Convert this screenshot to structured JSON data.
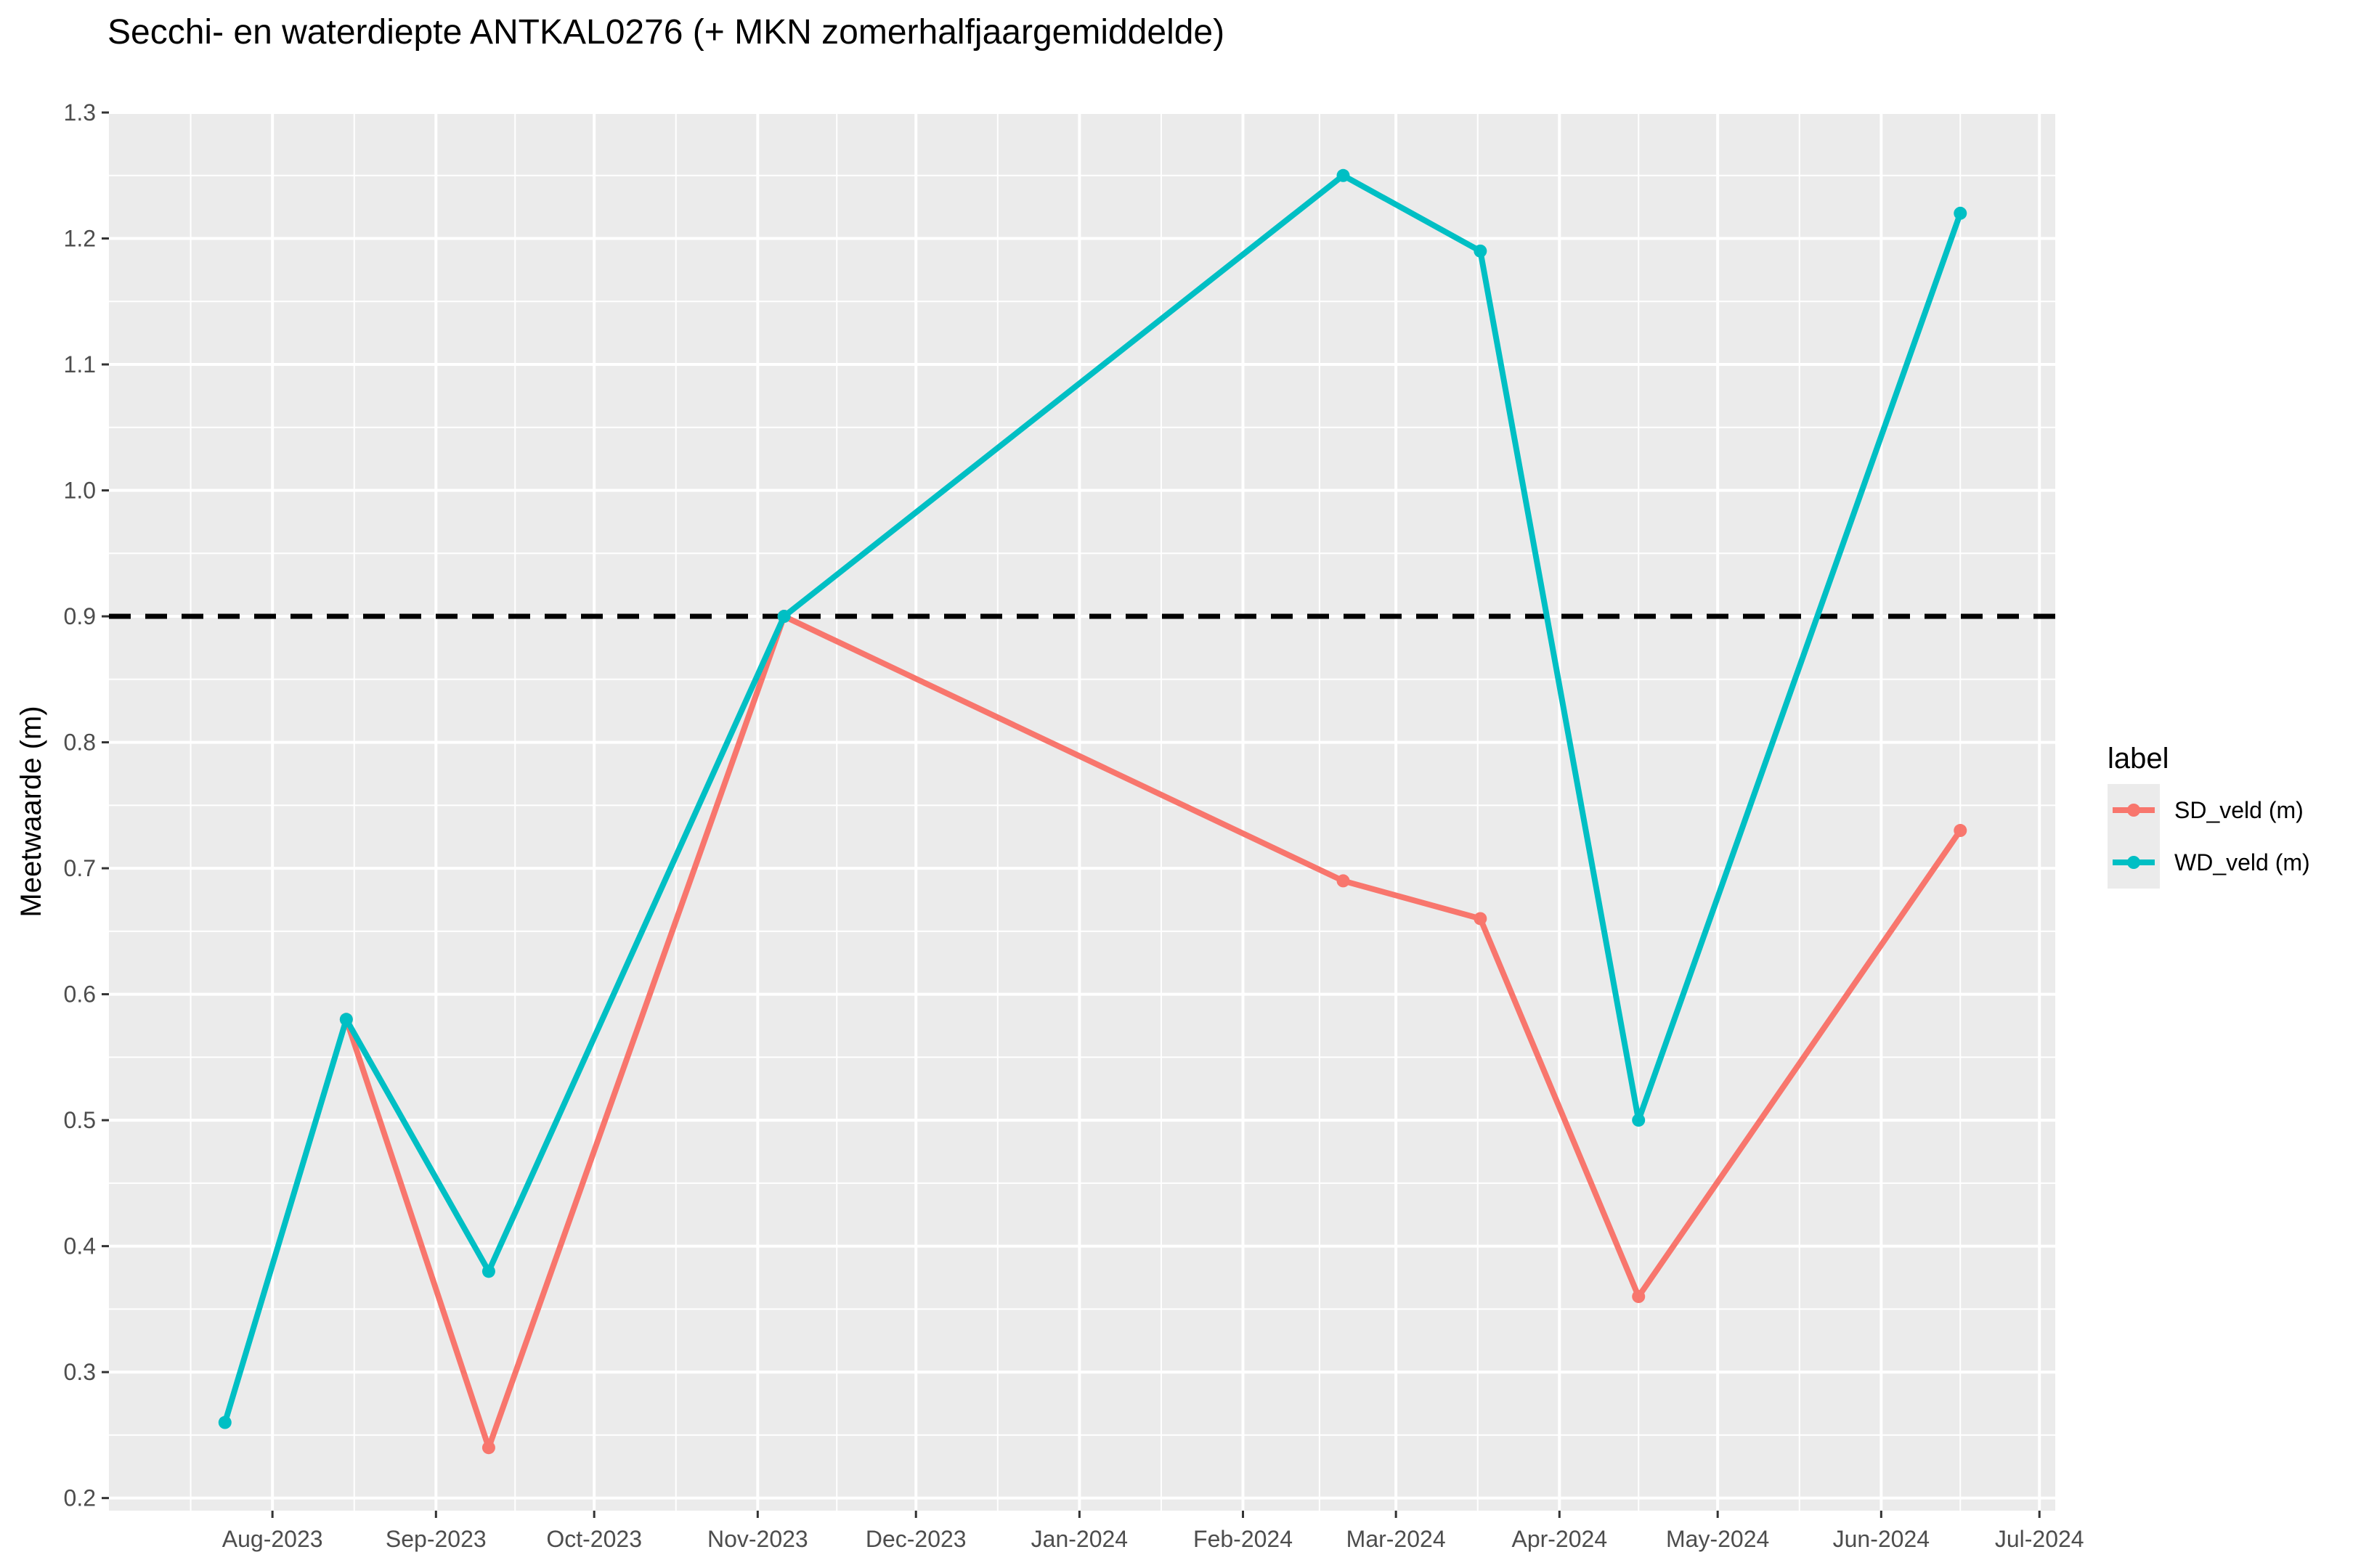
{
  "chart_data": {
    "type": "line",
    "title": "Secchi- en waterdiepte ANTKAL0276 (+ MKN  zomerhalfjaargemiddelde)",
    "xlabel": "",
    "ylabel": "Meetwaarde (m)",
    "x_axis": {
      "type": "date",
      "xlim": [
        "2023-07-01",
        "2024-07-04"
      ],
      "ticks": [
        {
          "date": "2023-08-01",
          "label": "Aug-2023"
        },
        {
          "date": "2023-09-01",
          "label": "Sep-2023"
        },
        {
          "date": "2023-10-01",
          "label": "Oct-2023"
        },
        {
          "date": "2023-11-01",
          "label": "Nov-2023"
        },
        {
          "date": "2023-12-01",
          "label": "Dec-2023"
        },
        {
          "date": "2024-01-01",
          "label": "Jan-2024"
        },
        {
          "date": "2024-02-01",
          "label": "Feb-2024"
        },
        {
          "date": "2024-03-01",
          "label": "Mar-2024"
        },
        {
          "date": "2024-04-01",
          "label": "Apr-2024"
        },
        {
          "date": "2024-05-01",
          "label": "May-2024"
        },
        {
          "date": "2024-06-01",
          "label": "Jun-2024"
        },
        {
          "date": "2024-07-01",
          "label": "Jul-2024"
        }
      ]
    },
    "y_axis": {
      "ylim": [
        0.19,
        1.3
      ],
      "ticks": [
        {
          "value": 0.2,
          "label": "0.2"
        },
        {
          "value": 0.3,
          "label": "0.3"
        },
        {
          "value": 0.4,
          "label": "0.4"
        },
        {
          "value": 0.5,
          "label": "0.5"
        },
        {
          "value": 0.6,
          "label": "0.6"
        },
        {
          "value": 0.7,
          "label": "0.7"
        },
        {
          "value": 0.8,
          "label": "0.8"
        },
        {
          "value": 0.9,
          "label": "0.9"
        },
        {
          "value": 1.0,
          "label": "1.0"
        },
        {
          "value": 1.1,
          "label": "1.1"
        },
        {
          "value": 1.2,
          "label": "1.2"
        },
        {
          "value": 1.3,
          "label": "1.3"
        }
      ]
    },
    "reference_line": {
      "y": 0.9,
      "style": "dashed",
      "color": "#000000"
    },
    "series": [
      {
        "name": "SD_veld (m)",
        "color": "#F8766D",
        "points": [
          {
            "x": "2023-08-15",
            "y": 0.58
          },
          {
            "x": "2023-09-11",
            "y": 0.24
          },
          {
            "x": "2023-11-06",
            "y": 0.9
          },
          {
            "x": "2024-02-20",
            "y": 0.69
          },
          {
            "x": "2024-03-17",
            "y": 0.66
          },
          {
            "x": "2024-04-16",
            "y": 0.36
          },
          {
            "x": "2024-06-16",
            "y": 0.73
          }
        ]
      },
      {
        "name": "WD_veld (m)",
        "color": "#00BFC4",
        "points": [
          {
            "x": "2023-07-23",
            "y": 0.26
          },
          {
            "x": "2023-08-15",
            "y": 0.58
          },
          {
            "x": "2023-09-11",
            "y": 0.38
          },
          {
            "x": "2023-11-06",
            "y": 0.9
          },
          {
            "x": "2024-02-20",
            "y": 1.25
          },
          {
            "x": "2024-03-17",
            "y": 1.19
          },
          {
            "x": "2024-04-16",
            "y": 0.5
          },
          {
            "x": "2024-06-16",
            "y": 1.22
          }
        ]
      }
    ],
    "legend": {
      "title": "label",
      "position": "right"
    },
    "grid": true,
    "panel_background": "#EBEBEB",
    "grid_color": "#FFFFFF"
  }
}
